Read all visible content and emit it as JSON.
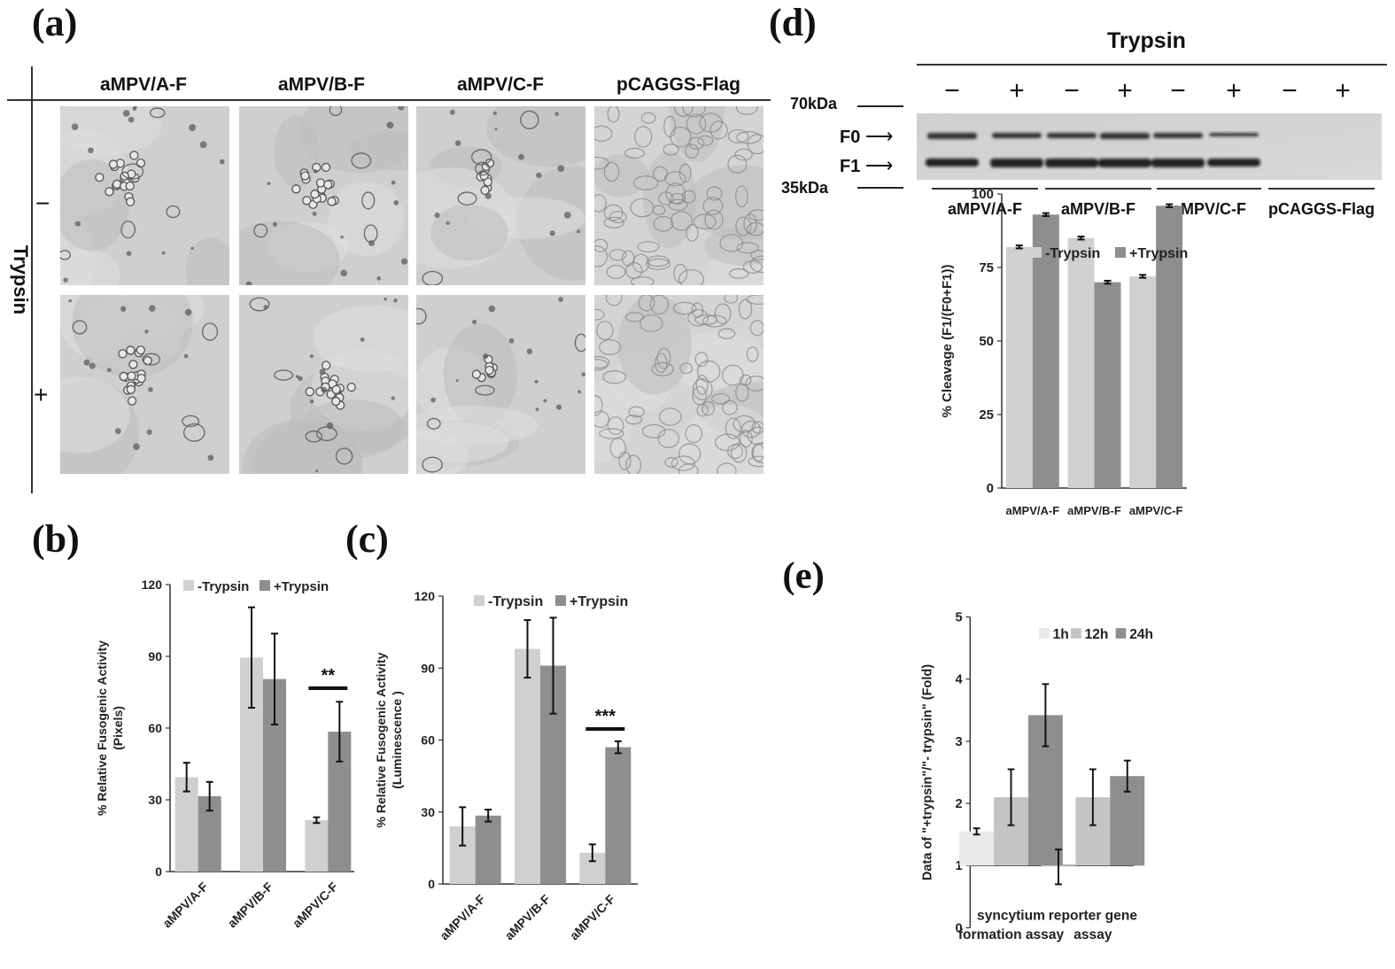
{
  "panel_a": {
    "letter": "(a)",
    "columns": [
      "aMPV/A-F",
      "aMPV/B-F",
      "aMPV/C-F",
      "pCAGGS-Flag"
    ],
    "row_axis_label": "Trypsin",
    "rows": [
      "−",
      "+"
    ]
  },
  "panel_d": {
    "letter": "(d)",
    "header": "Trypsin",
    "lane_signs": [
      "−",
      "+",
      "−",
      "+",
      "−",
      "+",
      "−",
      "+"
    ],
    "markers": [
      "70kDa",
      "35kDa"
    ],
    "bands": [
      "F0",
      "F1"
    ],
    "groups": [
      "aMPV/A-F",
      "aMPV/B-F",
      "aMPV/C-F",
      "pCAGGS-Flag"
    ]
  },
  "chart_data": [
    {
      "id": "b",
      "letter": "(b)",
      "type": "bar",
      "categories": [
        "aMPV/A-F",
        "aMPV/B-F",
        "aMPV/C-F"
      ],
      "series": [
        {
          "name": "-Trypsin",
          "values": [
            39.5,
            89.5,
            21.5
          ],
          "errors": [
            6,
            21,
            1.2
          ],
          "color": "#d0d0d0"
        },
        {
          "name": "+Trypsin",
          "values": [
            31.5,
            80.5,
            58.5
          ],
          "errors": [
            6,
            19,
            12.5
          ],
          "color": "#8e8e8e"
        }
      ],
      "ylabel": "% Relative Fusogenic Activity (Pixels)",
      "ylabel_lines": [
        "% Relative Fusogenic Activity",
        "(Pixels)"
      ],
      "ylim": [
        0,
        120
      ],
      "yticks": [
        "0",
        "30",
        "60",
        "90",
        "120"
      ],
      "significance": {
        "category": "aMPV/C-F",
        "label": "**"
      },
      "legend": "top"
    },
    {
      "id": "c",
      "letter": "(c)",
      "type": "bar",
      "categories": [
        "aMPV/A-F",
        "aMPV/B-F",
        "aMPV/C-F"
      ],
      "series": [
        {
          "name": "-Trypsin",
          "values": [
            24,
            98,
            13
          ],
          "errors": [
            8,
            12,
            3.5
          ],
          "color": "#d0d0d0"
        },
        {
          "name": "+Trypsin",
          "values": [
            28.5,
            91,
            57
          ],
          "errors": [
            2.5,
            20,
            2.5
          ],
          "color": "#8e8e8e"
        }
      ],
      "ylabel": "% Relative Fusogenic Activity (Luminescence )",
      "ylabel_lines": [
        "% Relative Fusogenic Activity",
        "(Luminescence )"
      ],
      "ylim": [
        0,
        120
      ],
      "yticks": [
        "0",
        "30",
        "60",
        "90",
        "120"
      ],
      "significance": {
        "category": "aMPV/C-F",
        "label": "***"
      },
      "legend": "top"
    },
    {
      "id": "d",
      "type": "bar",
      "categories": [
        "aMPV/A-F",
        "aMPV/B-F",
        "aMPV/C-F"
      ],
      "series": [
        {
          "name": "-Trypsin",
          "values": [
            82,
            85,
            72
          ],
          "errors": [
            0.5,
            0.5,
            0.5
          ],
          "color": "#d0d0d0"
        },
        {
          "name": "+Trypsin",
          "values": [
            93,
            70,
            96
          ],
          "errors": [
            0.5,
            0.5,
            0.5
          ],
          "color": "#8e8e8e"
        }
      ],
      "ylabel": "% Cleavage (F1/(F0+F1))",
      "ylim": [
        0,
        100
      ],
      "yticks": [
        "0",
        "25",
        "50",
        "75",
        "100"
      ],
      "legend": "top"
    },
    {
      "id": "e",
      "letter": "(e)",
      "type": "bar",
      "categories": [
        "syncytium formation assay",
        "reporter gene assay"
      ],
      "category_lines": [
        [
          "syncytium",
          "formation assay"
        ],
        [
          "reporter gene",
          "assay"
        ]
      ],
      "series": [
        {
          "name": "1h",
          "values": [
            1.55,
            0.98
          ],
          "errors": [
            0.05,
            0.28
          ],
          "color": "#e9e9e9"
        },
        {
          "name": "12h",
          "values": [
            2.1,
            2.1
          ],
          "errors": [
            0.45,
            0.45
          ],
          "color": "#c4c4c4"
        },
        {
          "name": "24h",
          "values": [
            3.42,
            2.44
          ],
          "errors": [
            0.5,
            0.25
          ],
          "color": "#8e8e8e"
        }
      ],
      "ylabel": "Data of \"+trypsin\"/\"- trypsin\" (Fold)",
      "ylim": [
        0,
        5
      ],
      "baseline": 1,
      "yticks": [
        "0",
        "1",
        "2",
        "3",
        "4",
        "5"
      ],
      "legend": "top"
    }
  ]
}
